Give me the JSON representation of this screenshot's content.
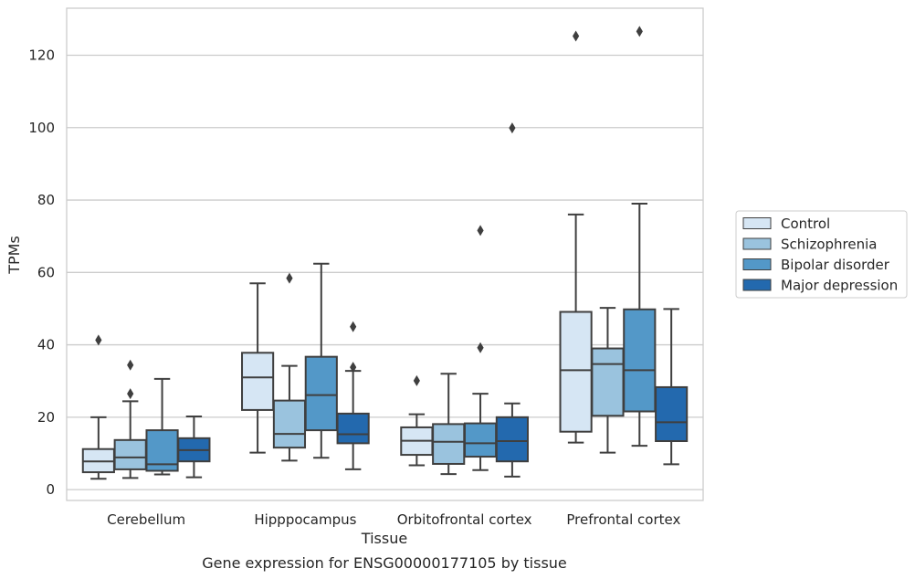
{
  "chart_data": {
    "type": "boxplot",
    "title": "",
    "caption": "Gene expression for ENSG00000177105 by tissue",
    "xlabel": "Tissue",
    "ylabel": "TPMs",
    "ylim": [
      -3,
      133
    ],
    "yticks": [
      0,
      20,
      40,
      60,
      80,
      100,
      120
    ],
    "grid": "horizontal",
    "legend_position": "right",
    "categories": [
      "Cerebellum",
      "Hipppocampus",
      "Orbitofrontal cortex",
      "Prefrontal cortex"
    ],
    "series": [
      {
        "name": "Control",
        "color": "#d6e6f4",
        "boxes": [
          {
            "whislo": 3,
            "q1": 4.8,
            "med": 7.8,
            "q3": 11.2,
            "whishi": 20,
            "fliers": [
              41.3
            ]
          },
          {
            "whislo": 10.2,
            "q1": 22,
            "med": 31,
            "q3": 37.8,
            "whishi": 57,
            "fliers": []
          },
          {
            "whislo": 6.7,
            "q1": 9.6,
            "med": 13.5,
            "q3": 17.2,
            "whishi": 20.8,
            "fliers": [
              30.1
            ]
          },
          {
            "whislo": 13,
            "q1": 16,
            "med": 33,
            "q3": 49.1,
            "whishi": 76,
            "fliers": [
              125.3
            ]
          }
        ]
      },
      {
        "name": "Schizophrenia",
        "color": "#9ac3de",
        "boxes": [
          {
            "whislo": 3.2,
            "q1": 5.6,
            "med": 8.9,
            "q3": 13.7,
            "whishi": 24.4,
            "fliers": [
              34.4,
              26.5
            ]
          },
          {
            "whislo": 8,
            "q1": 11.6,
            "med": 15.4,
            "q3": 24.6,
            "whishi": 34.2,
            "fliers": [
              58.4
            ]
          },
          {
            "whislo": 4.3,
            "q1": 7.1,
            "med": 13.2,
            "q3": 18.1,
            "whishi": 32,
            "fliers": []
          },
          {
            "whislo": 10.2,
            "q1": 20.4,
            "med": 34.7,
            "q3": 39,
            "whishi": 50.2,
            "fliers": []
          }
        ]
      },
      {
        "name": "Bipolar disorder",
        "color": "#5398c8",
        "boxes": [
          {
            "whislo": 4.2,
            "q1": 5.2,
            "med": 7,
            "q3": 16.4,
            "whishi": 30.6,
            "fliers": []
          },
          {
            "whislo": 8.8,
            "q1": 16.4,
            "med": 26.1,
            "q3": 36.7,
            "whishi": 62.4,
            "fliers": []
          },
          {
            "whislo": 5.4,
            "q1": 9.1,
            "med": 12.8,
            "q3": 18.3,
            "whishi": 26.5,
            "fliers": [
              71.6,
              39.2
            ]
          },
          {
            "whislo": 12.1,
            "q1": 21.6,
            "med": 33,
            "q3": 49.8,
            "whishi": 79,
            "fliers": [
              126.6
            ]
          }
        ]
      },
      {
        "name": "Major depression",
        "color": "#2369ae",
        "boxes": [
          {
            "whislo": 3.4,
            "q1": 7.8,
            "med": 10.9,
            "q3": 14.2,
            "whishi": 20.2,
            "fliers": []
          },
          {
            "whislo": 5.6,
            "q1": 12.8,
            "med": 15.3,
            "q3": 21,
            "whishi": 32.8,
            "fliers": [
              45,
              33.8
            ]
          },
          {
            "whislo": 3.6,
            "q1": 7.8,
            "med": 13.4,
            "q3": 20,
            "whishi": 23.8,
            "fliers": [
              99.9
            ]
          },
          {
            "whislo": 7,
            "q1": 13.4,
            "med": 18.6,
            "q3": 28.3,
            "whishi": 49.9,
            "fliers": []
          }
        ]
      }
    ]
  }
}
